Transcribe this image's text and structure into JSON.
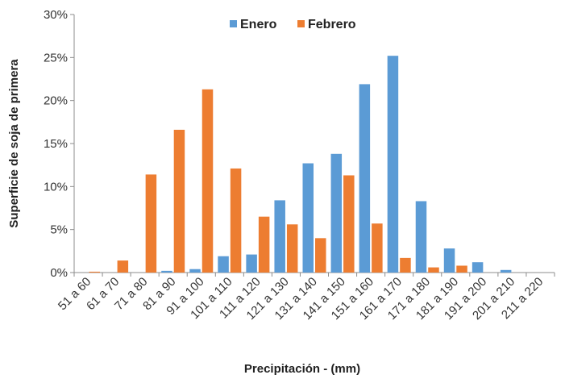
{
  "chart_data": {
    "type": "bar",
    "title": "",
    "xlabel": "Precipitación - (mm)",
    "ylabel": "Superficie de soja de primera",
    "ylim": [
      0,
      30
    ],
    "yticks": [
      "0%",
      "5%",
      "10%",
      "15%",
      "20%",
      "25%",
      "30%"
    ],
    "ytick_values": [
      0,
      5,
      10,
      15,
      20,
      25,
      30
    ],
    "grid": false,
    "legend_position": "top",
    "categories": [
      "51 a 60",
      "61 a 70",
      "71 a 80",
      "81 a 90",
      "91 a 100",
      "101 a 110",
      "111 a 120",
      "121 a 130",
      "131 a 140",
      "141 a 150",
      "151 a 160",
      "161 a 170",
      "171 a 180",
      "181 a 190",
      "191 a 200",
      "201 a 210",
      "211 a 220"
    ],
    "series": [
      {
        "name": "Enero",
        "color": "#5b9bd5",
        "values": [
          0,
          0,
          0,
          0.2,
          0.4,
          1.9,
          2.1,
          8.4,
          12.7,
          13.8,
          21.9,
          25.2,
          8.3,
          2.8,
          1.2,
          0.3,
          0
        ]
      },
      {
        "name": "Febrero",
        "color": "#ed7d31",
        "values": [
          0.1,
          1.4,
          11.4,
          16.6,
          21.3,
          12.1,
          6.5,
          5.6,
          4.0,
          11.3,
          5.7,
          1.7,
          0.6,
          0.8,
          0,
          0,
          0
        ]
      }
    ]
  }
}
